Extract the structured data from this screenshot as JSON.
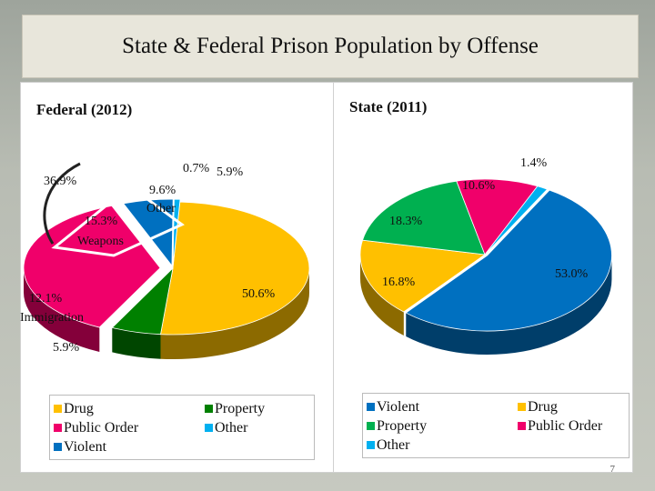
{
  "slide": {
    "title": "State & Federal Prison Population by Offense"
  },
  "chart_data": [
    {
      "type": "pie",
      "title": "Federal (2012)",
      "series": [
        {
          "label": "Drug",
          "value": 50.6,
          "display": "50.6%",
          "color": "#ffc000"
        },
        {
          "label": "Property",
          "value": 5.9,
          "display": "5.9%",
          "color": "#008000"
        },
        {
          "label": "Public Order",
          "value": 36.9,
          "display": "36.9%",
          "color": "#f0006a"
        },
        {
          "label": "Violent",
          "value": 5.9,
          "display": "5.9%",
          "color": "#0070c0"
        },
        {
          "label": "Other",
          "value": 0.7,
          "display": "0.7%",
          "color": "#00b0f0"
        }
      ],
      "breakdown": [
        {
          "label": "Weapons",
          "display": "15.3%"
        },
        {
          "label": "Other",
          "display": "9.6%"
        },
        {
          "label": "Immigration",
          "display": "12.1%"
        }
      ],
      "legend": [
        [
          "Drug",
          "Public Order",
          "Violent"
        ],
        [
          "Property",
          "Other"
        ]
      ]
    },
    {
      "type": "pie",
      "title": "State (2011)",
      "series": [
        {
          "label": "Violent",
          "value": 53.0,
          "display": "53.0%",
          "color": "#0070c0"
        },
        {
          "label": "Drug",
          "value": 16.8,
          "display": "16.8%",
          "color": "#ffc000"
        },
        {
          "label": "Property",
          "value": 18.3,
          "display": "18.3%",
          "color": "#00b050"
        },
        {
          "label": "Public Order",
          "value": 10.6,
          "display": "10.6%",
          "color": "#f0006a"
        },
        {
          "label": "Other",
          "value": 1.4,
          "display": "1.4%",
          "color": "#00b0f0"
        }
      ],
      "legend": [
        [
          "Violent",
          "Property",
          "Other"
        ],
        [
          "Drug",
          "Public Order"
        ]
      ]
    }
  ],
  "page_number": "7"
}
